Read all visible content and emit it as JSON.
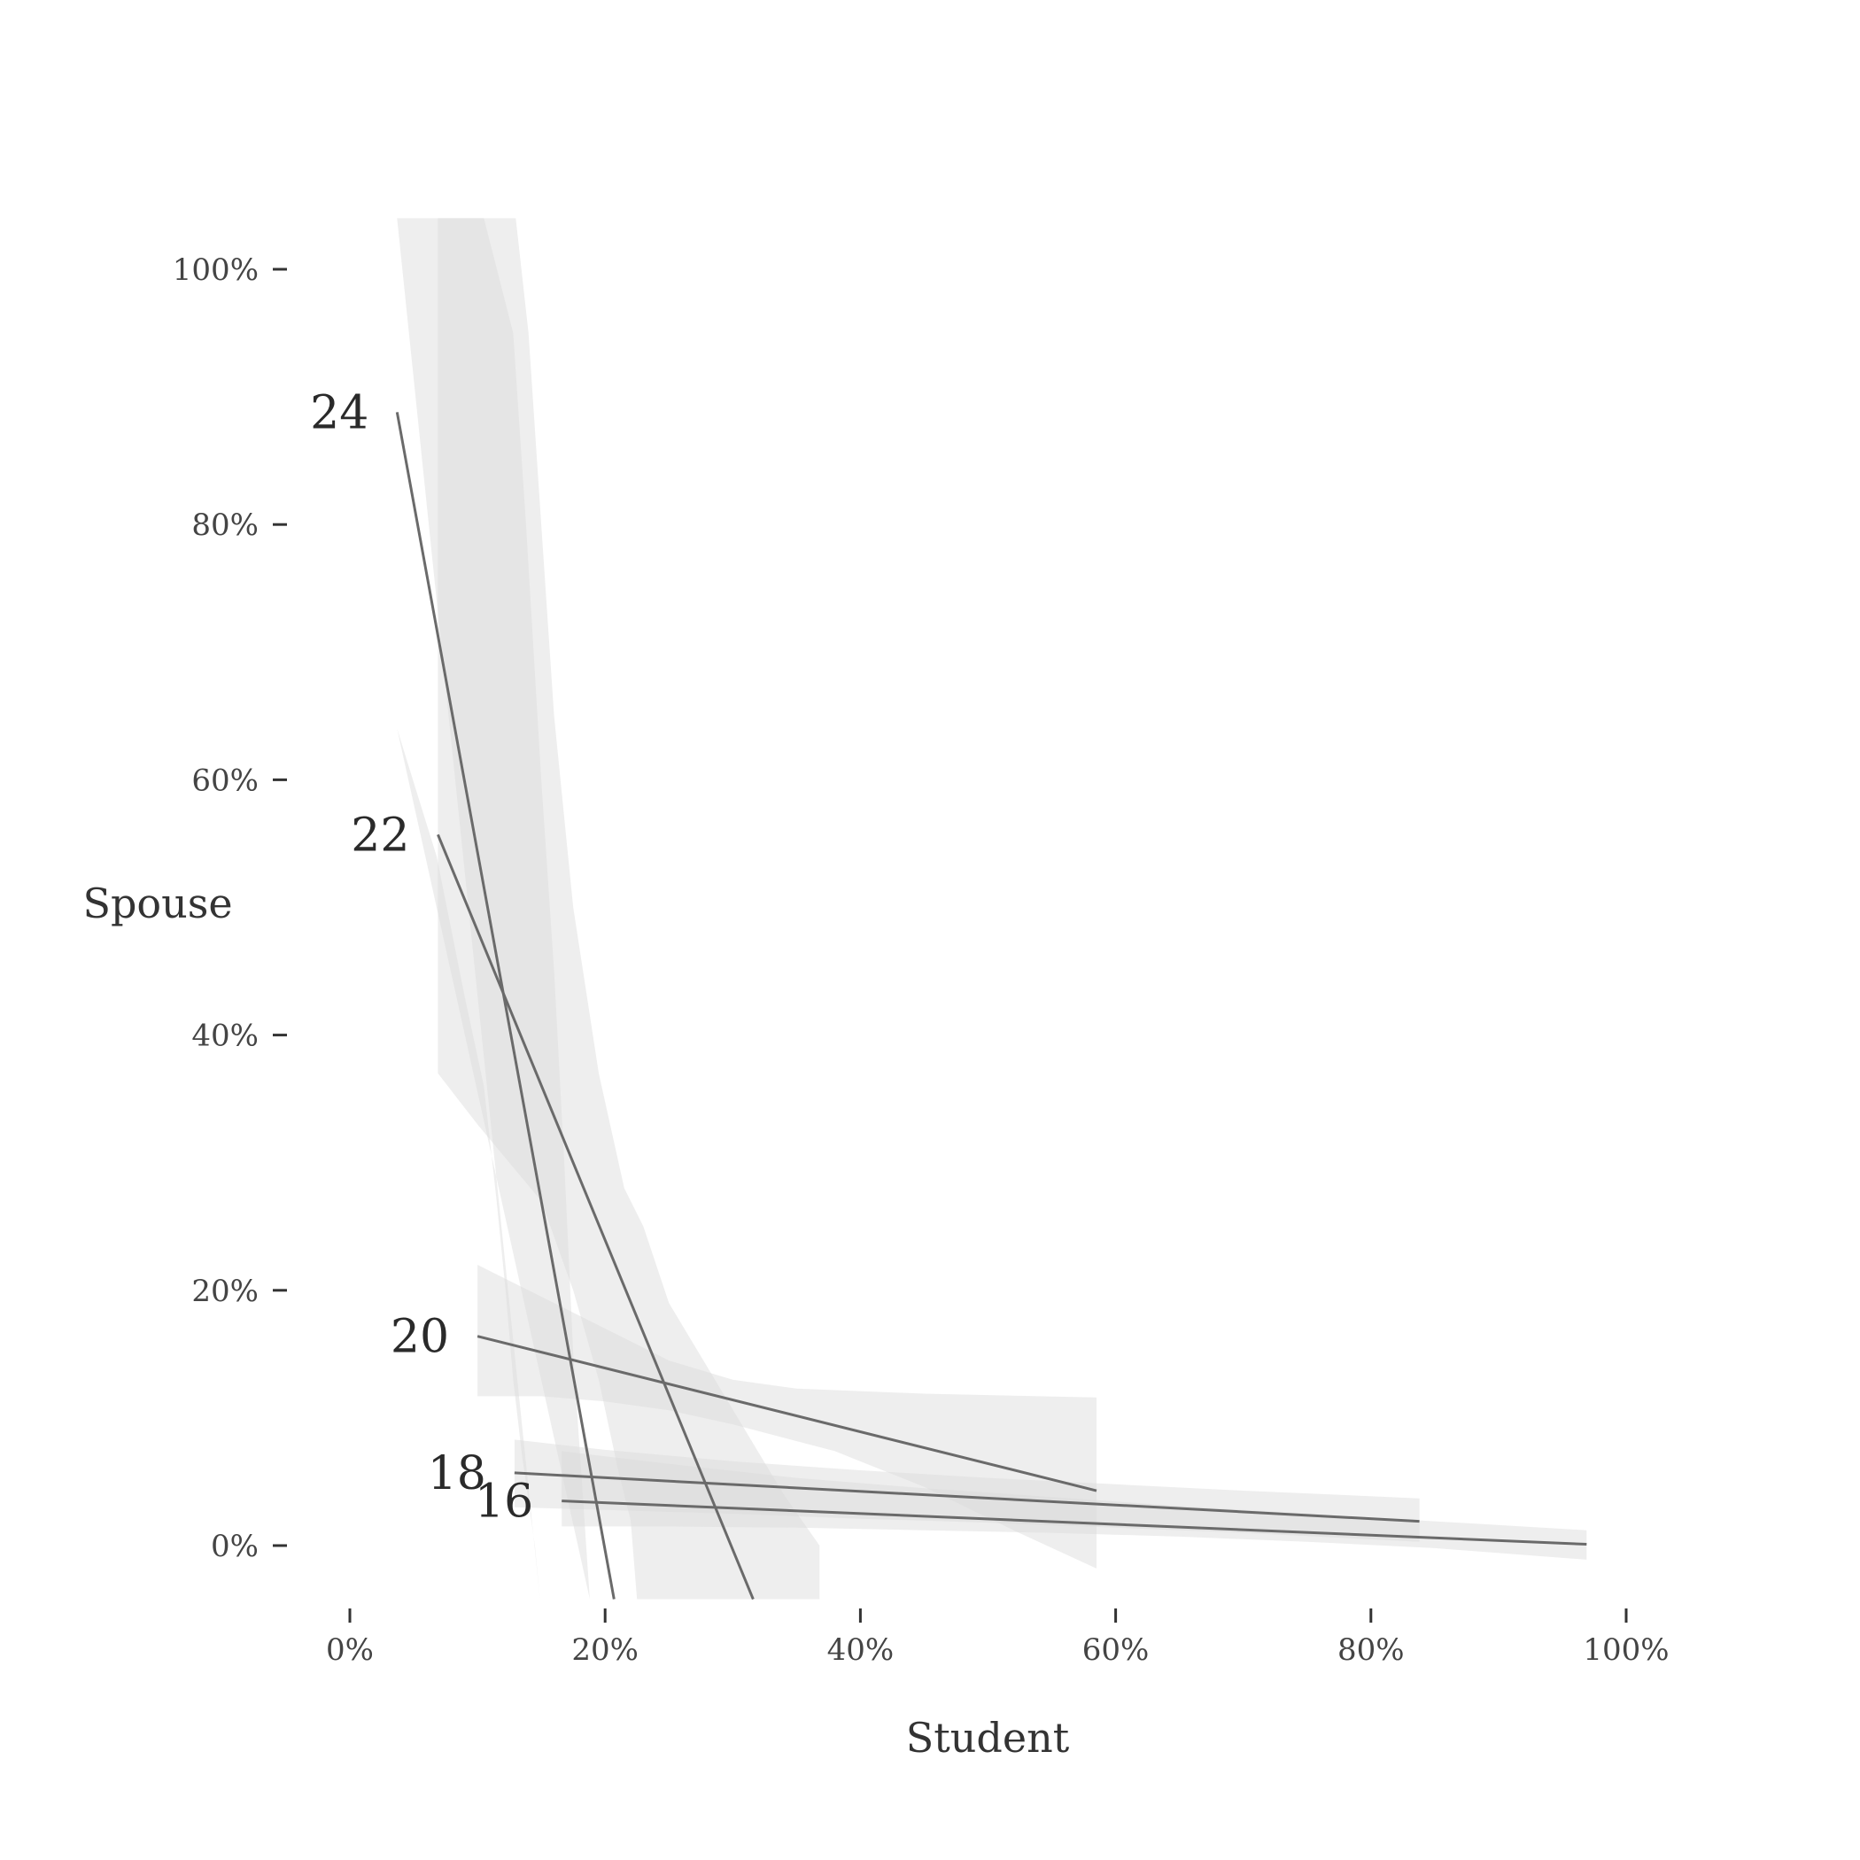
{
  "chart_data": {
    "type": "line",
    "title": "",
    "xlabel": "Student",
    "ylabel": "Spouse",
    "xlim": [
      0,
      100
    ],
    "ylim": [
      -4.2,
      104
    ],
    "x_ticks": [
      0,
      20,
      40,
      60,
      80,
      100
    ],
    "y_ticks": [
      0,
      20,
      40,
      60,
      80,
      100
    ],
    "x_tick_labels": [
      "0%",
      "20%",
      "40%",
      "60%",
      "80%",
      "100%"
    ],
    "y_tick_labels": [
      "0%",
      "20%",
      "40%",
      "60%",
      "80%",
      "100%"
    ],
    "grid": false,
    "legend": "none",
    "colors": {
      "line": "#6a6a6a",
      "band": "#d9d9d9",
      "text": "#333333"
    },
    "series": [
      {
        "name": "24",
        "line": [
          [
            3.7,
            88.8
          ],
          [
            20.7,
            -4.2
          ]
        ],
        "band": {
          "upper": [
            [
              3.7,
              104
            ],
            [
              6.8,
              104
            ],
            [
              10.5,
              104
            ],
            [
              12.8,
              95
            ],
            [
              13.8,
              80
            ],
            [
              15.0,
              60
            ],
            [
              16.0,
              45
            ],
            [
              16.8,
              30
            ],
            [
              17.5,
              15
            ],
            [
              18.8,
              -4.2
            ]
          ],
          "lower": [
            [
              3.7,
              64
            ],
            [
              6.8,
              54
            ],
            [
              9.0,
              43
            ],
            [
              10.5,
              36
            ],
            [
              11.5,
              27
            ],
            [
              12.2,
              20
            ],
            [
              12.8,
              13
            ],
            [
              13.5,
              7
            ],
            [
              14.5,
              0
            ],
            [
              14.9,
              -4.2
            ]
          ]
        }
      },
      {
        "name": "22",
        "line": [
          [
            6.9,
            55.7
          ],
          [
            31.6,
            -4.2
          ]
        ],
        "band": {
          "upper": [
            [
              6.9,
              104
            ],
            [
              13.0,
              104
            ],
            [
              14.0,
              95
            ],
            [
              15.0,
              80
            ],
            [
              16.0,
              65
            ],
            [
              17.5,
              50
            ],
            [
              19.5,
              37
            ],
            [
              21.5,
              28
            ],
            [
              23.0,
              25
            ],
            [
              25.0,
              19
            ],
            [
              28.0,
              14
            ],
            [
              34.0,
              4
            ],
            [
              36.8,
              0
            ],
            [
              36.8,
              -4.2
            ]
          ],
          "lower": [
            [
              22.5,
              -4.2
            ],
            [
              22.0,
              2
            ],
            [
              21.0,
              6
            ],
            [
              19.5,
              13
            ],
            [
              17.5,
              20
            ],
            [
              15.0,
              27
            ],
            [
              10.0,
              33
            ],
            [
              6.9,
              37
            ],
            [
              6.9,
              0
            ]
          ]
        }
      },
      {
        "name": "20",
        "line": [
          [
            10.0,
            16.4
          ],
          [
            58.5,
            4.3
          ]
        ],
        "band": {
          "upper": [
            [
              10.0,
              22
            ],
            [
              13.0,
              20.5
            ],
            [
              17.0,
              18.5
            ],
            [
              21.0,
              16.5
            ],
            [
              25.0,
              14.5
            ],
            [
              30.0,
              13
            ],
            [
              35.0,
              12.3
            ],
            [
              45.0,
              11.9
            ],
            [
              58.5,
              11.6
            ]
          ],
          "lower": [
            [
              58.5,
              -1.8
            ],
            [
              52.0,
              1.2
            ],
            [
              45.0,
              4.6
            ],
            [
              38.0,
              7.4
            ],
            [
              30.0,
              9.5
            ],
            [
              25.0,
              10.6
            ],
            [
              20.0,
              11.3
            ],
            [
              15.0,
              11.7
            ],
            [
              10.0,
              11.7
            ]
          ]
        }
      },
      {
        "name": "18",
        "line": [
          [
            12.9,
            5.7
          ],
          [
            83.8,
            1.9
          ]
        ],
        "band": {
          "upper": [
            [
              12.9,
              8.3
            ],
            [
              20.0,
              7.5
            ],
            [
              30.0,
              6.6
            ],
            [
              40.0,
              5.9
            ],
            [
              50.0,
              5.3
            ],
            [
              60.0,
              4.8
            ],
            [
              70.0,
              4.3
            ],
            [
              83.8,
              3.7
            ]
          ],
          "lower": [
            [
              83.8,
              0.3
            ],
            [
              70.0,
              1.0
            ],
            [
              60.0,
              1.4
            ],
            [
              50.0,
              1.8
            ],
            [
              40.0,
              2.1
            ],
            [
              30.0,
              2.5
            ],
            [
              20.0,
              2.8
            ],
            [
              12.9,
              3.0
            ]
          ]
        }
      },
      {
        "name": "16",
        "line": [
          [
            16.6,
            3.5
          ],
          [
            96.9,
            0.1
          ]
        ],
        "band": {
          "upper": [
            [
              16.6,
              7.4
            ],
            [
              25.0,
              6.4
            ],
            [
              35.0,
              5.3
            ],
            [
              45.0,
              4.5
            ],
            [
              55.0,
              3.8
            ],
            [
              65.0,
              3.1
            ],
            [
              75.0,
              2.5
            ],
            [
              85.0,
              1.9
            ],
            [
              96.9,
              1.2
            ]
          ],
          "lower": [
            [
              96.9,
              -1.1
            ],
            [
              85.0,
              -0.2
            ],
            [
              75.0,
              0.3
            ],
            [
              65.0,
              0.7
            ],
            [
              55.0,
              1.0
            ],
            [
              45.0,
              1.2
            ],
            [
              35.0,
              1.4
            ],
            [
              25.0,
              1.5
            ],
            [
              16.6,
              1.5
            ]
          ]
        }
      }
    ]
  }
}
